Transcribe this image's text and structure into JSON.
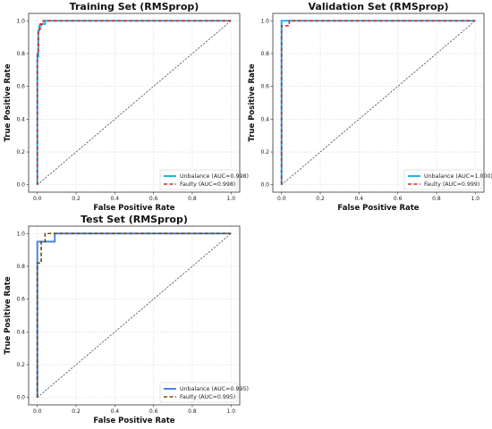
{
  "chart_data": [
    {
      "type": "line",
      "title": "Training Set (RMSprop)",
      "xlabel": "False Positive Rate",
      "ylabel": "True Positive Rate",
      "xlim": [
        0,
        1
      ],
      "ylim": [
        0,
        1
      ],
      "xticks": [
        "0.0",
        "0.2",
        "0.4",
        "0.6",
        "0.8",
        "1.0"
      ],
      "yticks": [
        "0.0",
        "0.2",
        "0.4",
        "0.6",
        "0.8",
        "1.0"
      ],
      "grid": true,
      "legend_position": "lower right",
      "series": [
        {
          "name": "Unbalance (AUC=0.998)",
          "color": "#1eb4e6",
          "style": "solid",
          "x": [
            0,
            0,
            0.005,
            0.005,
            0.01,
            0.01,
            0.02,
            0.02,
            0.04,
            0.04,
            1.0
          ],
          "y": [
            0,
            0.78,
            0.78,
            0.94,
            0.94,
            0.97,
            0.97,
            0.98,
            0.98,
            1.0,
            1.0
          ]
        },
        {
          "name": "Faulty (AUC=0.998)",
          "color": "#e02020",
          "style": "dashed",
          "x": [
            0,
            0,
            0.005,
            0.005,
            0.015,
            0.015,
            0.03,
            0.03,
            1.0
          ],
          "y": [
            0,
            0.8,
            0.8,
            0.95,
            0.95,
            0.98,
            0.98,
            1.0,
            1.0
          ]
        }
      ]
    },
    {
      "type": "line",
      "title": "Validation Set (RMSprop)",
      "xlabel": "False Positive Rate",
      "ylabel": "True Positive Rate",
      "xlim": [
        0,
        1
      ],
      "ylim": [
        0,
        1
      ],
      "xticks": [
        "0.0",
        "0.2",
        "0.4",
        "0.6",
        "0.8",
        "1.0"
      ],
      "yticks": [
        "0.0",
        "0.2",
        "0.4",
        "0.6",
        "0.8",
        "1.0"
      ],
      "grid": true,
      "legend_position": "lower right",
      "series": [
        {
          "name": "Unbalance (AUC=1.000)",
          "color": "#1eb4e6",
          "style": "solid",
          "x": [
            0,
            0,
            1.0
          ],
          "y": [
            0,
            1.0,
            1.0
          ]
        },
        {
          "name": "Faulty (AUC=0.999)",
          "color": "#e02020",
          "style": "dashed",
          "x": [
            0,
            0,
            0.04,
            0.04,
            1.0
          ],
          "y": [
            0,
            0.97,
            0.97,
            1.0,
            1.0
          ]
        }
      ]
    },
    {
      "type": "line",
      "title": "Test Set (RMSprop)",
      "xlabel": "False Positive Rate",
      "ylabel": "True Positive Rate",
      "xlim": [
        0,
        1
      ],
      "ylim": [
        0,
        1
      ],
      "xticks": [
        "0.0",
        "0.2",
        "0.4",
        "0.6",
        "0.8",
        "1.0"
      ],
      "yticks": [
        "0.0",
        "0.2",
        "0.4",
        "0.6",
        "0.8",
        "1.0"
      ],
      "grid": true,
      "legend_position": "lower right",
      "series": [
        {
          "name": "Unbalance (AUC=0.995)",
          "color": "#4a86e0",
          "style": "solid",
          "x": [
            0,
            0,
            0.09,
            0.09,
            1.0
          ],
          "y": [
            0,
            0.95,
            0.95,
            1.0,
            1.0
          ]
        },
        {
          "name": "Faulty (AUC=0.995)",
          "color": "#6b4a0a",
          "style": "dashed",
          "x": [
            0,
            0,
            0.02,
            0.02,
            0.04,
            0.04,
            1.0
          ],
          "y": [
            0,
            0.82,
            0.82,
            0.95,
            0.95,
            1.0,
            1.0
          ]
        }
      ]
    }
  ]
}
